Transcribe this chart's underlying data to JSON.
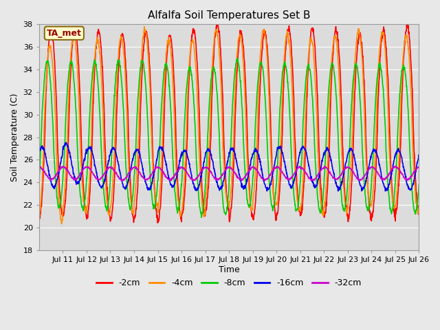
{
  "title": "Alfalfa Soil Temperatures Set B",
  "xlabel": "Time",
  "ylabel": "Soil Temperature (C)",
  "ylim": [
    18,
    38
  ],
  "xlim_start": 10,
  "xlim_end": 26,
  "xtick_labels": [
    "Jul 11",
    "Jul 12",
    "Jul 13",
    "Jul 14",
    "Jul 15",
    "Jul 16",
    "Jul 17",
    "Jul 18",
    "Jul 19",
    "Jul 20",
    "Jul 21",
    "Jul 22",
    "Jul 23",
    "Jul 24",
    "Jul 25",
    "Jul 26"
  ],
  "annotation_text": "TA_met",
  "annotation_bg": "#FFFFCC",
  "annotation_border": "#8B6914",
  "annotation_text_color": "#990000",
  "bg_color": "#E8E8E8",
  "plot_bg_color": "#DCDCDC",
  "series": [
    {
      "label": "-2cm",
      "color": "#FF0000",
      "linewidth": 1.2
    },
    {
      "label": "-4cm",
      "color": "#FF8C00",
      "linewidth": 1.2
    },
    {
      "label": "-8cm",
      "color": "#00CC00",
      "linewidth": 1.2
    },
    {
      "label": "-16cm",
      "color": "#0000EE",
      "linewidth": 1.2
    },
    {
      "label": "-32cm",
      "color": "#CC00CC",
      "linewidth": 1.2
    }
  ],
  "amp_2cm": 7.8,
  "amp_4cm": 7.2,
  "amp_8cm": 5.8,
  "amp_16cm": 1.6,
  "amp_32cm": 0.55,
  "mean_2cm": 28.5,
  "mean_4cm": 28.2,
  "mean_8cm": 27.5,
  "mean_16cm": 25.3,
  "mean_32cm": 24.8,
  "phase_2cm": -1.6,
  "phase_4cm": -1.3,
  "phase_8cm": -0.6,
  "phase_16cm": 0.8,
  "phase_32cm": 1.5,
  "title_fontsize": 11,
  "axis_label_fontsize": 9,
  "tick_fontsize": 8,
  "legend_fontsize": 9,
  "grid_color": "#FFFFFF",
  "grid_linewidth": 0.8
}
